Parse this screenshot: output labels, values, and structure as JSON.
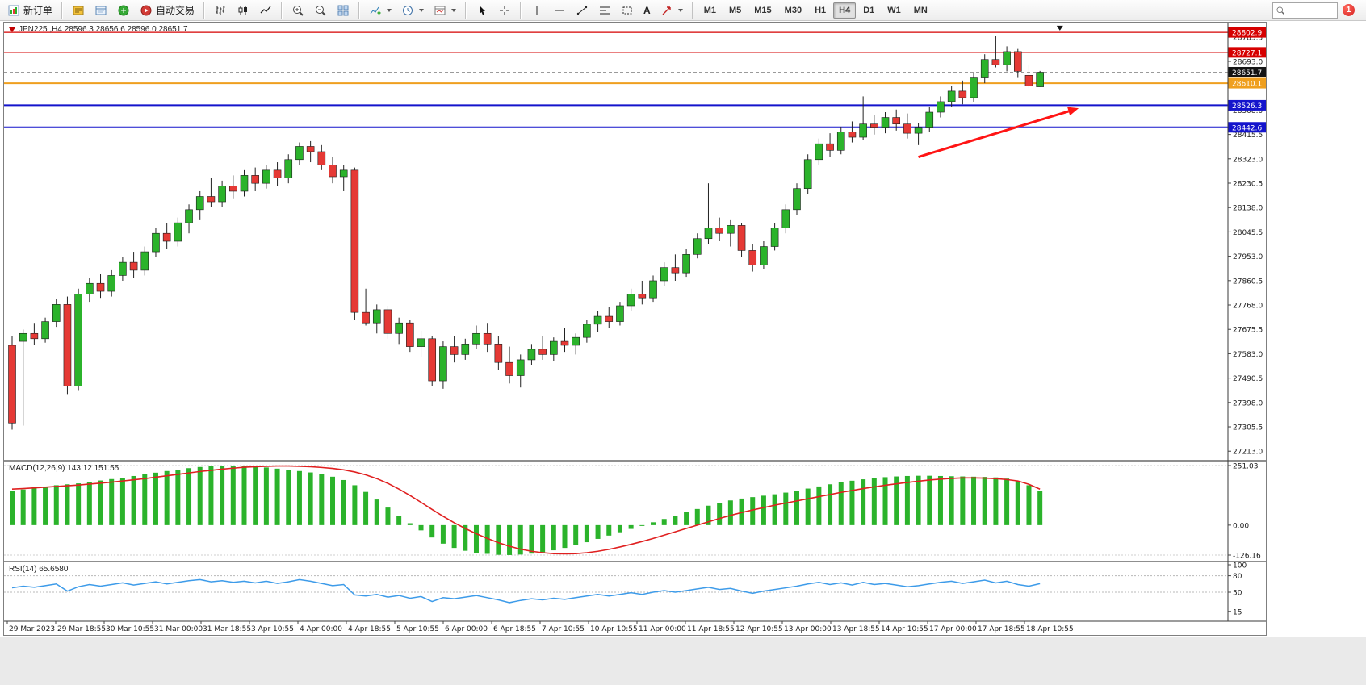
{
  "toolbar": {
    "new_order_label": "新订单",
    "algo_trading_label": "自动交易",
    "text_tool_label": "A",
    "timeframes": [
      "M1",
      "M5",
      "M15",
      "M30",
      "H1",
      "H4",
      "D1",
      "W1",
      "MN"
    ],
    "active_timeframe": "H4",
    "search_value": "",
    "notification_count": "1"
  },
  "chart_header": {
    "title": "JPN225 ,H4 28596.3 28656.6 28596.0 28651.7"
  },
  "indicator_titles": {
    "macd": "MACD(12,26,9) 143.12 151.55",
    "rsi": "RSI(14) 65.6580"
  },
  "chart_data": {
    "type": "candlestick",
    "symbol": "JPN225",
    "timeframe": "H4",
    "ohlc_display": {
      "open": 28596.3,
      "high": 28656.6,
      "low": 28596.0,
      "close": 28651.7
    },
    "price_axis": {
      "range": [
        27180,
        28840
      ],
      "gridline_labels": [
        28785.5,
        28693.0,
        28600.5,
        28508.0,
        28415.5,
        28323.0,
        28230.5,
        28138.0,
        28045.5,
        27953.0,
        27860.5,
        27768.0,
        27675.5,
        27583.0,
        27490.5,
        27398.0,
        27305.5,
        27213.0
      ],
      "line_labels": [
        {
          "text": "28802.9",
          "value": 28802.9,
          "bg": "#d60000"
        },
        {
          "text": "28727.1",
          "value": 28727.1,
          "bg": "#d60000"
        },
        {
          "text": "28651.7",
          "value": 28651.7,
          "bg": "#141414"
        },
        {
          "text": "28610.1",
          "value": 28610.1,
          "bg": "#ef9f1f"
        },
        {
          "text": "28526.3",
          "value": 28526.3,
          "bg": "#1414cc"
        },
        {
          "text": "28442.6",
          "value": 28442.6,
          "bg": "#1414cc"
        }
      ]
    },
    "horizontal_lines": [
      {
        "value": 28802.9,
        "color": "#d60000",
        "width": 1.2,
        "dash": ""
      },
      {
        "value": 28727.1,
        "color": "#d60000",
        "width": 1.2,
        "dash": ""
      },
      {
        "value": 28651.7,
        "color": "#9a9a9a",
        "width": 1,
        "dash": "4,3"
      },
      {
        "value": 28610.1,
        "color": "#ef9f1f",
        "width": 2,
        "dash": ""
      },
      {
        "value": 28526.3,
        "color": "#1414cc",
        "width": 2,
        "dash": ""
      },
      {
        "value": 28442.6,
        "color": "#1414cc",
        "width": 2,
        "dash": ""
      }
    ],
    "time_axis_labels": [
      "29 Mar 2023",
      "29 Mar 18:55",
      "30 Mar 10:55",
      "31 Mar 00:00",
      "31 Mar 18:55",
      "3 Apr 10:55",
      "4 Apr 00:00",
      "4 Apr 18:55",
      "5 Apr 10:55",
      "6 Apr 00:00",
      "6 Apr 18:55",
      "7 Apr 10:55",
      "10 Apr 10:55",
      "11 Apr 00:00",
      "11 Apr 18:55",
      "12 Apr 10:55",
      "13 Apr 00:00",
      "13 Apr 18:55",
      "14 Apr 10:55",
      "17 Apr 00:00",
      "17 Apr 18:55",
      "18 Apr 10:55"
    ],
    "candles": [
      [
        27615,
        27650,
        27295,
        27320
      ],
      [
        27630,
        27675,
        27310,
        27660
      ],
      [
        27660,
        27700,
        27615,
        27640
      ],
      [
        27640,
        27720,
        27625,
        27705
      ],
      [
        27705,
        27790,
        27685,
        27770
      ],
      [
        27770,
        27800,
        27430,
        27460
      ],
      [
        27460,
        27830,
        27445,
        27810
      ],
      [
        27810,
        27870,
        27780,
        27850
      ],
      [
        27850,
        27885,
        27795,
        27820
      ],
      [
        27820,
        27900,
        27800,
        27880
      ],
      [
        27880,
        27950,
        27860,
        27930
      ],
      [
        27930,
        27970,
        27870,
        27900
      ],
      [
        27900,
        27990,
        27880,
        27970
      ],
      [
        27970,
        28060,
        27950,
        28040
      ],
      [
        28040,
        28080,
        27980,
        28010
      ],
      [
        28010,
        28100,
        27990,
        28080
      ],
      [
        28080,
        28150,
        28040,
        28130
      ],
      [
        28130,
        28200,
        28090,
        28180
      ],
      [
        28180,
        28250,
        28140,
        28160
      ],
      [
        28160,
        28240,
        28140,
        28220
      ],
      [
        28220,
        28260,
        28170,
        28200
      ],
      [
        28200,
        28280,
        28180,
        28260
      ],
      [
        28260,
        28290,
        28200,
        28230
      ],
      [
        28230,
        28300,
        28210,
        28280
      ],
      [
        28280,
        28310,
        28220,
        28250
      ],
      [
        28250,
        28340,
        28230,
        28320
      ],
      [
        28320,
        28385,
        28300,
        28370
      ],
      [
        28370,
        28390,
        28310,
        28350
      ],
      [
        28350,
        28375,
        28280,
        28300
      ],
      [
        28300,
        28330,
        28230,
        28255
      ],
      [
        28255,
        28300,
        28200,
        28280
      ],
      [
        28280,
        28290,
        27710,
        27740
      ],
      [
        27740,
        27830,
        27690,
        27700
      ],
      [
        27700,
        27770,
        27660,
        27750
      ],
      [
        27750,
        27765,
        27640,
        27660
      ],
      [
        27660,
        27720,
        27620,
        27700
      ],
      [
        27700,
        27710,
        27590,
        27610
      ],
      [
        27610,
        27670,
        27570,
        27640
      ],
      [
        27640,
        27650,
        27460,
        27480
      ],
      [
        27480,
        27630,
        27450,
        27610
      ],
      [
        27610,
        27650,
        27550,
        27580
      ],
      [
        27580,
        27640,
        27560,
        27620
      ],
      [
        27620,
        27690,
        27600,
        27660
      ],
      [
        27660,
        27700,
        27590,
        27620
      ],
      [
        27620,
        27650,
        27520,
        27550
      ],
      [
        27550,
        27610,
        27470,
        27500
      ],
      [
        27500,
        27580,
        27455,
        27560
      ],
      [
        27560,
        27620,
        27540,
        27600
      ],
      [
        27600,
        27650,
        27560,
        27580
      ],
      [
        27580,
        27645,
        27555,
        27630
      ],
      [
        27630,
        27680,
        27590,
        27615
      ],
      [
        27615,
        27660,
        27580,
        27645
      ],
      [
        27645,
        27710,
        27625,
        27695
      ],
      [
        27695,
        27745,
        27665,
        27725
      ],
      [
        27725,
        27760,
        27680,
        27705
      ],
      [
        27705,
        27780,
        27690,
        27765
      ],
      [
        27765,
        27830,
        27745,
        27810
      ],
      [
        27810,
        27860,
        27770,
        27795
      ],
      [
        27795,
        27880,
        27780,
        27860
      ],
      [
        27860,
        27930,
        27840,
        27910
      ],
      [
        27910,
        27960,
        27860,
        27890
      ],
      [
        27890,
        27980,
        27875,
        27960
      ],
      [
        27960,
        28040,
        27945,
        28020
      ],
      [
        28020,
        28230,
        28000,
        28060
      ],
      [
        28060,
        28100,
        28010,
        28040
      ],
      [
        28040,
        28090,
        27990,
        28070
      ],
      [
        28070,
        28080,
        27950,
        27975
      ],
      [
        27975,
        28000,
        27895,
        27920
      ],
      [
        27920,
        28010,
        27905,
        27990
      ],
      [
        27990,
        28080,
        27975,
        28060
      ],
      [
        28060,
        28150,
        28040,
        28130
      ],
      [
        28130,
        28230,
        28110,
        28210
      ],
      [
        28210,
        28340,
        28190,
        28320
      ],
      [
        28320,
        28400,
        28300,
        28380
      ],
      [
        28380,
        28420,
        28330,
        28355
      ],
      [
        28355,
        28445,
        28340,
        28425
      ],
      [
        28425,
        28465,
        28385,
        28405
      ],
      [
        28405,
        28560,
        28395,
        28455
      ],
      [
        28455,
        28490,
        28415,
        28440
      ],
      [
        28440,
        28500,
        28420,
        28480
      ],
      [
        28480,
        28510,
        28430,
        28455
      ],
      [
        28455,
        28495,
        28400,
        28420
      ],
      [
        28420,
        28460,
        28375,
        28440
      ],
      [
        28440,
        28520,
        28425,
        28500
      ],
      [
        28500,
        28560,
        28480,
        28540
      ],
      [
        28540,
        28600,
        28520,
        28580
      ],
      [
        28580,
        28620,
        28530,
        28555
      ],
      [
        28555,
        28650,
        28540,
        28630
      ],
      [
        28630,
        28720,
        28610,
        28700
      ],
      [
        28700,
        28790,
        28670,
        28680
      ],
      [
        28680,
        28750,
        28655,
        28730
      ],
      [
        28730,
        28740,
        28630,
        28655
      ],
      [
        28640,
        28680,
        28590,
        28600
      ],
      [
        28596.3,
        28656.6,
        28596.0,
        28651.7
      ]
    ],
    "colors": {
      "up": "#2bb32b",
      "down": "#e53935",
      "wick": "#222222",
      "macd_hist": "#2bb32b",
      "macd_signal": "#e02020",
      "rsi_line": "#3d9be9"
    },
    "macd": {
      "title": "MACD(12,26,9) 143.12 151.55",
      "value": 143.12,
      "signal_value": 151.55,
      "axis_labels": [
        "251.03",
        "0.00",
        "-126.16"
      ],
      "range": [
        -126.16,
        251.03
      ],
      "histogram": [
        145,
        150,
        156,
        162,
        168,
        172,
        176,
        182,
        188,
        194,
        200,
        207,
        214,
        221,
        228,
        234,
        240,
        245,
        248,
        250,
        251,
        250,
        247,
        243,
        238,
        233,
        228,
        222,
        214,
        204,
        190,
        168,
        140,
        108,
        74,
        40,
        8,
        -22,
        -52,
        -78,
        -96,
        -108,
        -116,
        -121,
        -125,
        -126,
        -124,
        -120,
        -114,
        -106,
        -96,
        -85,
        -72,
        -58,
        -44,
        -30,
        -16,
        -2,
        12,
        26,
        40,
        54,
        68,
        82,
        94,
        104,
        112,
        118,
        124,
        130,
        137,
        145,
        154,
        163,
        172,
        180,
        187,
        193,
        198,
        202,
        205,
        207,
        208,
        208,
        207,
        206,
        205,
        204,
        203,
        201,
        196,
        186,
        168,
        143.12
      ],
      "signal": [
        152,
        154,
        157,
        160,
        163,
        166,
        169,
        173,
        177,
        181,
        186,
        191,
        196,
        202,
        208,
        214,
        220,
        226,
        231,
        236,
        240,
        244,
        246,
        248,
        249,
        249,
        248,
        246,
        243,
        239,
        233,
        224,
        212,
        196,
        176,
        152,
        125,
        96,
        66,
        37,
        10,
        -14,
        -36,
        -56,
        -74,
        -89,
        -101,
        -110,
        -116,
        -120,
        -121,
        -120,
        -116,
        -110,
        -102,
        -92,
        -81,
        -69,
        -56,
        -42,
        -28,
        -14,
        0,
        14,
        28,
        41,
        53,
        64,
        74,
        84,
        93,
        102,
        111,
        120,
        129,
        138,
        146,
        154,
        161,
        168,
        174,
        180,
        185,
        190,
        194,
        197,
        199,
        199,
        198,
        196,
        192,
        186,
        172,
        151.55
      ]
    },
    "rsi": {
      "title": "RSI(14) 65.6580",
      "value": 65.658,
      "axis_labels": [
        "100",
        "80",
        "50",
        "15"
      ],
      "levels": [
        80,
        50
      ],
      "range": [
        0,
        100
      ],
      "values": [
        58,
        61,
        59,
        62,
        65,
        52,
        60,
        64,
        61,
        64,
        67,
        63,
        66,
        69,
        65,
        68,
        71,
        73,
        69,
        71,
        68,
        70,
        67,
        70,
        66,
        69,
        73,
        70,
        66,
        62,
        64,
        45,
        43,
        46,
        41,
        44,
        39,
        42,
        33,
        40,
        38,
        41,
        44,
        40,
        36,
        31,
        35,
        38,
        36,
        39,
        37,
        40,
        43,
        46,
        43,
        46,
        49,
        46,
        50,
        53,
        50,
        53,
        56,
        59,
        55,
        57,
        52,
        48,
        52,
        55,
        58,
        61,
        65,
        68,
        64,
        67,
        63,
        68,
        64,
        66,
        63,
        60,
        62,
        65,
        68,
        70,
        66,
        69,
        72,
        67,
        70,
        64,
        61,
        65.66
      ]
    },
    "annotations": [
      {
        "type": "arrow",
        "from_index": 82,
        "from_price": 28330,
        "to_index": 96.5,
        "to_price": 28515,
        "color": "#ff1414",
        "width": 3
      },
      {
        "type": "marker",
        "shape": "triangle-down",
        "x_index": 94.8,
        "price": 28828,
        "color": "#141414"
      }
    ]
  }
}
